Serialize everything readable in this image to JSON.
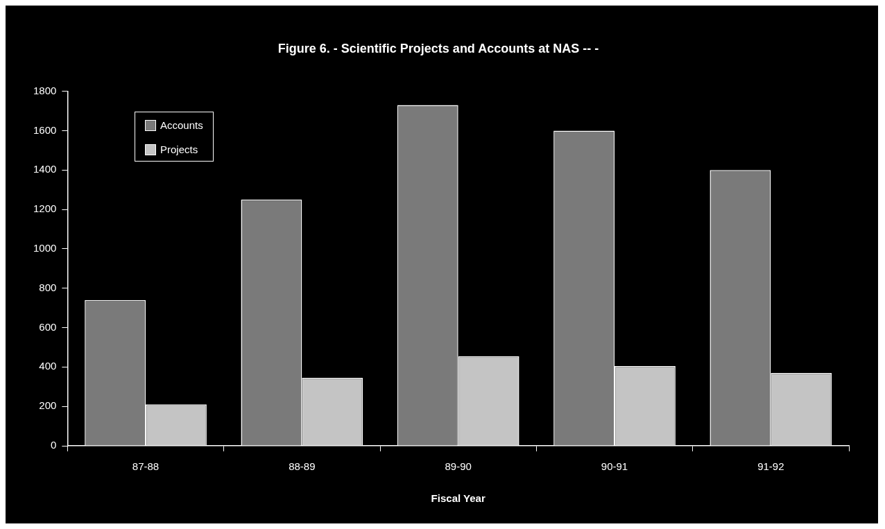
{
  "chart_data": {
    "type": "bar",
    "title": "Figure 6. - Scientific Projects and Accounts at NAS -- -",
    "xlabel": "Fiscal Year",
    "categories": [
      "87-88",
      "88-89",
      "89-90",
      "90-91",
      "91-92"
    ],
    "series": [
      {
        "name": "Accounts",
        "color": "#7a7a7a",
        "values": [
          740,
          1250,
          1730,
          1600,
          1400
        ]
      },
      {
        "name": "Projects",
        "color": "#c4c4c4",
        "values": [
          210,
          345,
          455,
          405,
          370
        ]
      }
    ],
    "ylim": [
      0,
      1800
    ],
    "yticks": [
      0,
      200,
      400,
      600,
      800,
      1000,
      1200,
      1400,
      1600,
      1800
    ],
    "grid": false,
    "legend": "top left"
  }
}
